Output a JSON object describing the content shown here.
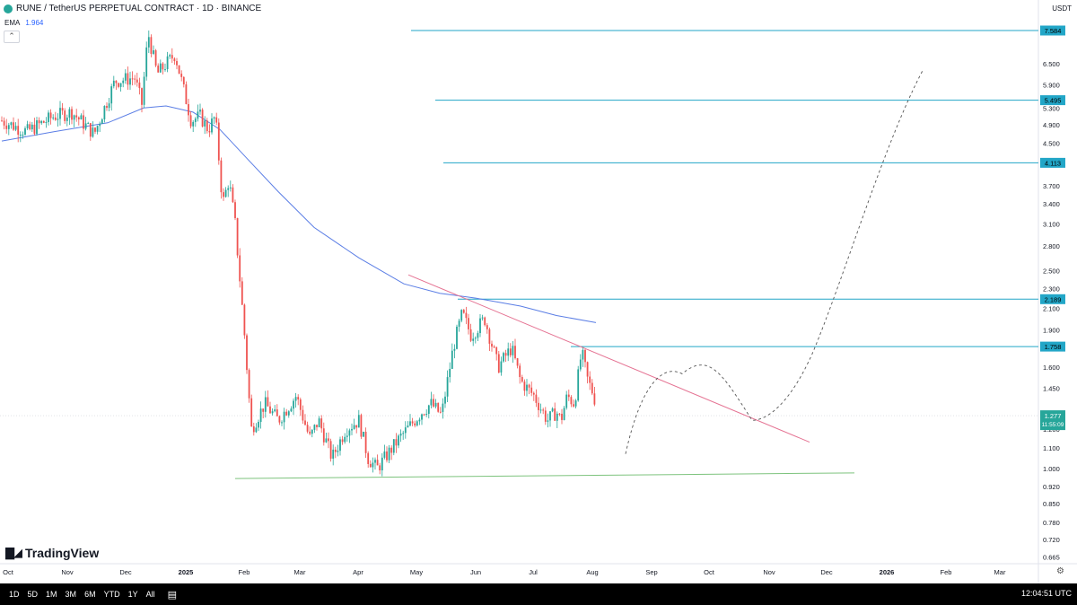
{
  "header": {
    "title": "RUNE / TetherUS PERPETUAL CONTRACT · 1D · BINANCE",
    "ema_label": "EMA",
    "ema_value": "1.964",
    "currency": "USDT"
  },
  "brand": "TradingView",
  "bottom_bar": {
    "ranges": [
      "1D",
      "5D",
      "1M",
      "3M",
      "6M",
      "YTD",
      "1Y",
      "All"
    ],
    "clock": "12:04:51 UTC"
  },
  "colors": {
    "up": "#26a69a",
    "down": "#ef5350",
    "ema": "#5b7ee5",
    "level": "#22a6c7",
    "resistance": "#e57393",
    "support": "#7dc37d",
    "last_price_bg": "#26a69a"
  },
  "chart_data": {
    "type": "candlestick",
    "symbol": "RUNE / TetherUS PERPETUAL CONTRACT",
    "interval": "1D",
    "exchange": "BINANCE",
    "price_scale": "log",
    "y_ticks": [
      "6.500",
      "5.900",
      "5.300",
      "4.900",
      "4.500",
      "3.700",
      "3.400",
      "3.100",
      "2.800",
      "2.500",
      "2.300",
      "2.100",
      "1.900",
      "1.600",
      "1.450",
      "1.200",
      "1.100",
      "1.000",
      "0.920",
      "0.850",
      "0.780",
      "0.720",
      "0.665"
    ],
    "x_ticks": [
      "Oct",
      "Nov",
      "Dec",
      "2025",
      "Feb",
      "Mar",
      "Apr",
      "May",
      "Jun",
      "Jul",
      "Aug",
      "Sep",
      "Oct",
      "Nov",
      "Dec",
      "2026",
      "Feb",
      "Mar"
    ],
    "ohlc_path": [
      [
        "Oct",
        5.0
      ],
      [
        "Oct",
        4.75
      ],
      [
        "Oct",
        5.1
      ],
      [
        "Nov",
        5.2
      ],
      [
        "Nov",
        4.7
      ],
      [
        "Nov",
        6.0
      ],
      [
        "Dec",
        6.1
      ],
      [
        "Dec",
        5.4
      ],
      [
        "Dec",
        7.5
      ],
      [
        "Dec",
        6.2
      ],
      [
        "Dec",
        6.8
      ],
      [
        "Dec",
        5.0
      ],
      [
        "2025",
        5.1
      ],
      [
        "2025",
        4.8
      ],
      [
        "2025",
        5.1
      ],
      [
        "2025",
        3.4
      ],
      [
        "2025",
        3.8
      ],
      [
        "Feb",
        3.1
      ],
      [
        "Feb",
        1.9
      ],
      [
        "Feb",
        1.2
      ],
      [
        "Feb",
        1.35
      ],
      [
        "Feb",
        1.25
      ],
      [
        "Mar",
        1.4
      ],
      [
        "Mar",
        1.15
      ],
      [
        "Mar",
        1.25
      ],
      [
        "Mar",
        1.05
      ],
      [
        "Mar",
        1.2
      ],
      [
        "Apr",
        1.25
      ],
      [
        "Apr",
        1.05
      ],
      [
        "Apr",
        1.0
      ],
      [
        "Apr",
        1.15
      ],
      [
        "Apr",
        1.3
      ],
      [
        "May",
        1.35
      ],
      [
        "May",
        1.28
      ],
      [
        "May",
        1.75
      ],
      [
        "May",
        2.05
      ],
      [
        "May",
        1.85
      ],
      [
        "Jun",
        2.0
      ],
      [
        "Jun",
        1.6
      ],
      [
        "Jun",
        1.75
      ],
      [
        "Jun",
        1.5
      ],
      [
        "Jun",
        1.4
      ],
      [
        "Jul",
        1.25
      ],
      [
        "Jul",
        1.3
      ],
      [
        "Jul",
        1.25
      ],
      [
        "Jul",
        1.4
      ],
      [
        "Jul",
        1.35
      ],
      [
        "Jul",
        1.72
      ],
      [
        "Jul",
        1.5
      ],
      [
        "Aug",
        1.4
      ],
      [
        "Aug",
        1.28
      ]
    ],
    "ema": {
      "label": "EMA",
      "value": 1.964
    },
    "last_price": {
      "value": "1.277",
      "countdown": "11:55:09"
    },
    "horizontal_levels": [
      {
        "label": "7.584",
        "value": 7.584,
        "from": "May"
      },
      {
        "label": "5.495",
        "value": 5.495,
        "from": "May"
      },
      {
        "label": "4.113",
        "value": 4.113,
        "from": "May"
      },
      {
        "label": "2.189",
        "value": 2.189,
        "from": "May"
      },
      {
        "label": "1.758",
        "value": 1.758,
        "from": "Jul"
      }
    ],
    "resistance_line": {
      "from": [
        "Apr",
        2.45
      ],
      "to": [
        "Nov",
        1.13
      ]
    },
    "support_line": {
      "from": [
        "Feb",
        0.955
      ],
      "to": [
        "Dec",
        0.98
      ]
    },
    "projection": {
      "style": "dashed",
      "path": [
        [
          "Aug",
          1.07
        ],
        [
          "Sep",
          1.55
        ],
        [
          "Oct",
          1.6
        ],
        [
          "Oct",
          1.25
        ],
        [
          "Nov",
          1.35
        ],
        [
          "Dec",
          2.4
        ],
        [
          "2026",
          6.3
        ]
      ]
    }
  }
}
